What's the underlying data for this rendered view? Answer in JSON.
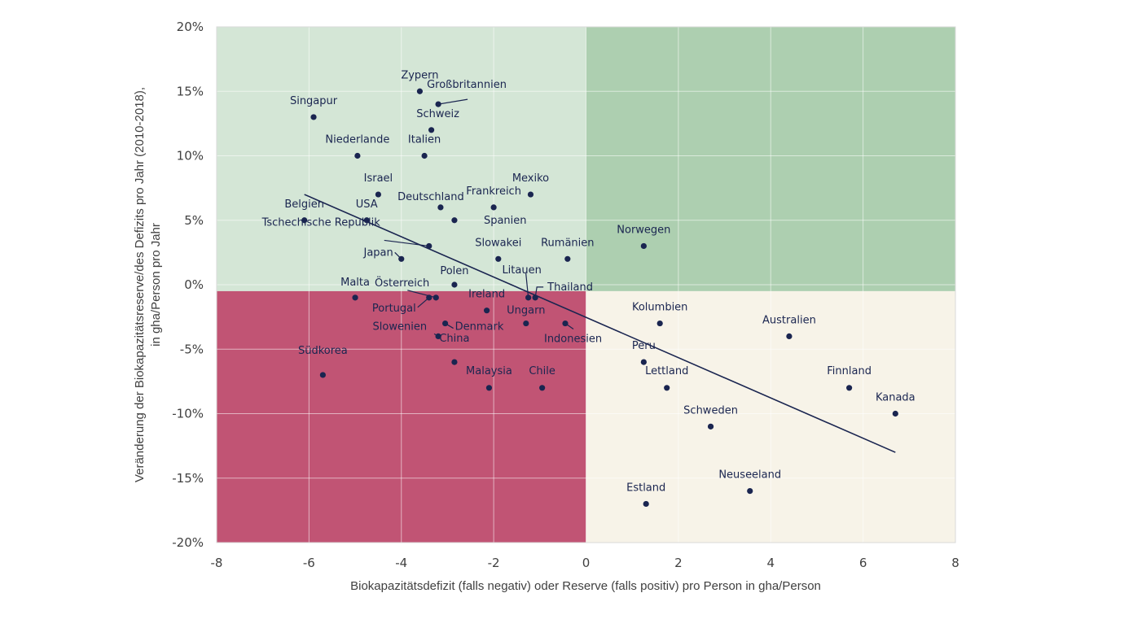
{
  "chart_data": {
    "type": "scatter",
    "title": "",
    "xlabel": "Biokapazitätsdefizit (falls negativ) oder Reserve (falls positiv) pro Person in gha/Person",
    "ylabel": "Veränderung der Biokapazitätsreserve/des Defizits pro Jahr (2010-2018),",
    "ylabel2": "in gha/Person pro Jahr",
    "xlim": [
      -8,
      8
    ],
    "ylim": [
      -20,
      20
    ],
    "xticks": [
      "-8",
      "-6",
      "-4",
      "-2",
      "0",
      "2",
      "4",
      "6",
      "8"
    ],
    "yticks": [
      "20%",
      "15%",
      "10%",
      "5%",
      "0%",
      "-5%",
      "-10%",
      "-15%",
      "-20%"
    ],
    "grid": true,
    "quadrant_split": {
      "x": 0,
      "y": -0.5
    },
    "quadrant_colors": {
      "top_left": "#d4e6d6",
      "top_right": "#adcfb0",
      "bottom_left": "#c15474",
      "bottom_right": "#f7f3e8"
    },
    "point_color": "#1a2550",
    "trendline": {
      "from": [
        -6.1,
        7
      ],
      "to": [
        6.7,
        -13
      ]
    },
    "points": [
      {
        "name": "Zypern",
        "x": -3.6,
        "y": 15
      },
      {
        "name": "Großbritannien",
        "x": -3.2,
        "y": 14
      },
      {
        "name": "Singapur",
        "x": -5.9,
        "y": 13
      },
      {
        "name": "Schweiz",
        "x": -3.35,
        "y": 12
      },
      {
        "name": "Niederlande",
        "x": -4.95,
        "y": 10
      },
      {
        "name": "Italien",
        "x": -3.5,
        "y": 10
      },
      {
        "name": "Israel",
        "x": -4.5,
        "y": 7
      },
      {
        "name": "Mexiko",
        "x": -1.2,
        "y": 7
      },
      {
        "name": "Deutschland",
        "x": -3.15,
        "y": 6
      },
      {
        "name": "Frankreich",
        "x": -2.0,
        "y": 6
      },
      {
        "name": "Belgien",
        "x": -6.1,
        "y": 5
      },
      {
        "name": "USA",
        "x": -4.75,
        "y": 5
      },
      {
        "name": "Spanien",
        "x": -2.85,
        "y": 5
      },
      {
        "name": "Tschechische Republik",
        "x": -3.4,
        "y": 3
      },
      {
        "name": "Norwegen",
        "x": 1.25,
        "y": 3
      },
      {
        "name": "Japan",
        "x": -4.0,
        "y": 2
      },
      {
        "name": "Slowakei",
        "x": -1.9,
        "y": 2
      },
      {
        "name": "Rumänien",
        "x": -0.4,
        "y": 2
      },
      {
        "name": "Polen",
        "x": -2.85,
        "y": 0
      },
      {
        "name": "Malta",
        "x": -5.0,
        "y": -1
      },
      {
        "name": "Österreich",
        "x": -3.25,
        "y": -1
      },
      {
        "name": "Portugal",
        "x": -3.4,
        "y": -1
      },
      {
        "name": "Litauen",
        "x": -1.25,
        "y": -1
      },
      {
        "name": "Thailand",
        "x": -1.1,
        "y": -1
      },
      {
        "name": "Ireland",
        "x": -2.15,
        "y": -2
      },
      {
        "name": "Kolumbien",
        "x": 1.6,
        "y": -3
      },
      {
        "name": "Denmark",
        "x": -3.05,
        "y": -3
      },
      {
        "name": "Ungarn",
        "x": -1.3,
        "y": -3
      },
      {
        "name": "Indonesien",
        "x": -0.45,
        "y": -3
      },
      {
        "name": "Slowenien",
        "x": -3.2,
        "y": -4
      },
      {
        "name": "Australien",
        "x": 4.4,
        "y": -4
      },
      {
        "name": "China",
        "x": -2.85,
        "y": -6
      },
      {
        "name": "Peru",
        "x": 1.25,
        "y": -6
      },
      {
        "name": "Südkorea",
        "x": -5.7,
        "y": -7
      },
      {
        "name": "Malaysia",
        "x": -2.1,
        "y": -8
      },
      {
        "name": "Chile",
        "x": -0.95,
        "y": -8
      },
      {
        "name": "Lettland",
        "x": 1.75,
        "y": -8
      },
      {
        "name": "Finnland",
        "x": 5.7,
        "y": -8
      },
      {
        "name": "Kanada",
        "x": 6.7,
        "y": -10
      },
      {
        "name": "Schweden",
        "x": 2.7,
        "y": -11
      },
      {
        "name": "Neuseeland",
        "x": 3.55,
        "y": -16
      },
      {
        "name": "Estland",
        "x": 1.3,
        "y": -17
      }
    ]
  }
}
